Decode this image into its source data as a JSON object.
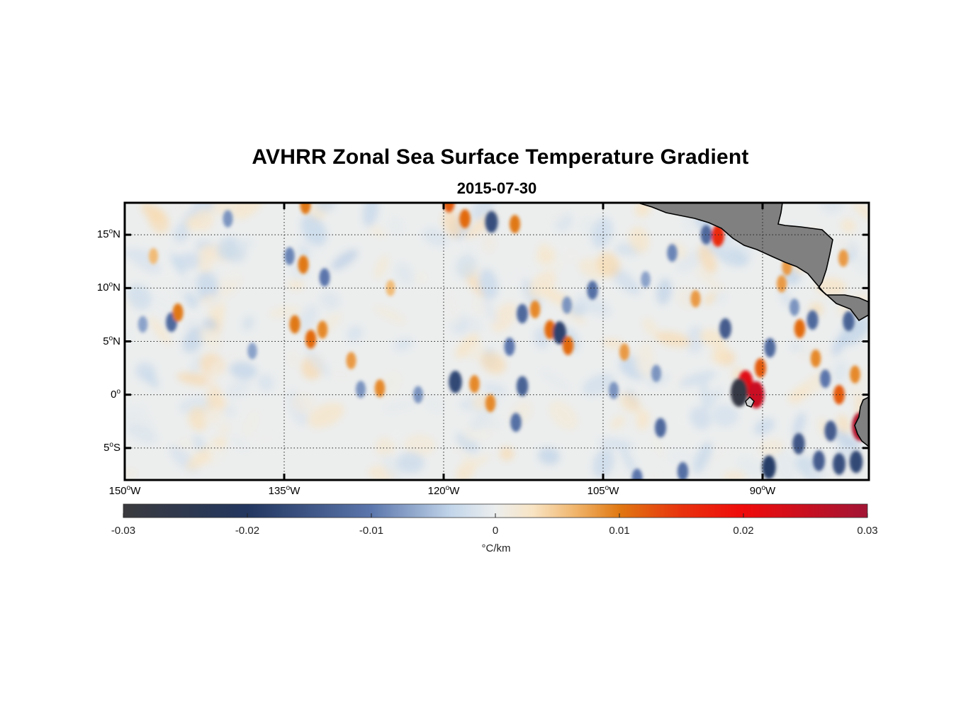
{
  "title": "AVHRR Zonal Sea Surface Temperature Gradient",
  "subtitle": "2015-07-30",
  "map": {
    "lon_range": [
      -150,
      -80
    ],
    "lat_range": [
      -8,
      18
    ],
    "lat_ticks": [
      {
        "value": 15,
        "num": "15",
        "deg": "o",
        "hemi": "N"
      },
      {
        "value": 10,
        "num": "10",
        "deg": "o",
        "hemi": "N"
      },
      {
        "value": 5,
        "num": "5",
        "deg": "o",
        "hemi": "N"
      },
      {
        "value": 0,
        "num": "0",
        "deg": "o",
        "hemi": ""
      },
      {
        "value": -5,
        "num": "5",
        "deg": "o",
        "hemi": "S"
      }
    ],
    "lon_ticks": [
      {
        "value": -150,
        "num": "150",
        "deg": "o",
        "hemi": "W"
      },
      {
        "value": -135,
        "num": "135",
        "deg": "o",
        "hemi": "W"
      },
      {
        "value": -120,
        "num": "120",
        "deg": "o",
        "hemi": "W"
      },
      {
        "value": -105,
        "num": "105",
        "deg": "o",
        "hemi": "W"
      },
      {
        "value": -90,
        "num": "90",
        "deg": "o",
        "hemi": "W"
      }
    ],
    "land_color": "#808080",
    "ocean_color": "#eceeee",
    "anomalies": [
      {
        "lon": -140.3,
        "lat": 16.5,
        "v": -0.008
      },
      {
        "lon": -133.2,
        "lat": 12.2,
        "v": 0.01
      },
      {
        "lon": -131.2,
        "lat": 11.0,
        "v": -0.01
      },
      {
        "lon": -134.5,
        "lat": 13.0,
        "v": -0.009
      },
      {
        "lon": -134.0,
        "lat": 6.6,
        "v": 0.01
      },
      {
        "lon": -132.5,
        "lat": 5.2,
        "v": 0.011
      },
      {
        "lon": -131.4,
        "lat": 6.1,
        "v": 0.009
      },
      {
        "lon": -145.6,
        "lat": 6.8,
        "v": -0.012
      },
      {
        "lon": -145.0,
        "lat": 7.7,
        "v": 0.01
      },
      {
        "lon": -148.3,
        "lat": 6.6,
        "v": -0.007
      },
      {
        "lon": -133.0,
        "lat": 17.8,
        "v": 0.01
      },
      {
        "lon": -118.0,
        "lat": 16.5,
        "v": 0.011
      },
      {
        "lon": -115.5,
        "lat": 16.2,
        "v": -0.016
      },
      {
        "lon": -113.3,
        "lat": 16.0,
        "v": 0.01
      },
      {
        "lon": -119.5,
        "lat": 18.0,
        "v": 0.012
      },
      {
        "lon": -111.4,
        "lat": 8.0,
        "v": 0.009
      },
      {
        "lon": -112.6,
        "lat": 7.6,
        "v": -0.012
      },
      {
        "lon": -110.0,
        "lat": 6.1,
        "v": 0.011
      },
      {
        "lon": -109.1,
        "lat": 5.8,
        "v": -0.018
      },
      {
        "lon": -108.3,
        "lat": 4.6,
        "v": 0.011
      },
      {
        "lon": -108.4,
        "lat": 8.4,
        "v": -0.008
      },
      {
        "lon": -106.0,
        "lat": 9.8,
        "v": -0.011
      },
      {
        "lon": -113.8,
        "lat": 4.5,
        "v": -0.01
      },
      {
        "lon": -118.9,
        "lat": 1.2,
        "v": -0.017
      },
      {
        "lon": -117.1,
        "lat": 1.0,
        "v": 0.009
      },
      {
        "lon": -115.6,
        "lat": -0.8,
        "v": 0.009
      },
      {
        "lon": -112.6,
        "lat": 0.8,
        "v": -0.013
      },
      {
        "lon": -113.2,
        "lat": -2.6,
        "v": -0.011
      },
      {
        "lon": -126.0,
        "lat": 0.6,
        "v": 0.009
      },
      {
        "lon": -127.8,
        "lat": 0.5,
        "v": -0.008
      },
      {
        "lon": -122.4,
        "lat": 0.0,
        "v": -0.008
      },
      {
        "lon": -94.2,
        "lat": 14.9,
        "v": 0.016
      },
      {
        "lon": -95.3,
        "lat": 15.0,
        "v": -0.012
      },
      {
        "lon": -98.5,
        "lat": 13.3,
        "v": -0.009
      },
      {
        "lon": -91.6,
        "lat": 1.1,
        "v": 0.022
      },
      {
        "lon": -90.6,
        "lat": 0.0,
        "v": 0.025
      },
      {
        "lon": -92.2,
        "lat": 0.2,
        "v": -0.028
      },
      {
        "lon": -90.2,
        "lat": 2.5,
        "v": 0.012
      },
      {
        "lon": -89.3,
        "lat": 4.4,
        "v": -0.012
      },
      {
        "lon": -93.5,
        "lat": 6.2,
        "v": -0.014
      },
      {
        "lon": -86.5,
        "lat": 6.2,
        "v": 0.011
      },
      {
        "lon": -85.3,
        "lat": 7.0,
        "v": -0.012
      },
      {
        "lon": -81.9,
        "lat": 6.9,
        "v": -0.013
      },
      {
        "lon": -82.8,
        "lat": 0.0,
        "v": 0.012
      },
      {
        "lon": -83.6,
        "lat": -3.4,
        "v": -0.014
      },
      {
        "lon": -80.8,
        "lat": -3.0,
        "v": 0.028
      },
      {
        "lon": -81.2,
        "lat": -6.3,
        "v": -0.017
      },
      {
        "lon": -82.8,
        "lat": -6.5,
        "v": -0.016
      },
      {
        "lon": -84.7,
        "lat": -6.2,
        "v": -0.014
      },
      {
        "lon": -86.6,
        "lat": -4.6,
        "v": -0.015
      },
      {
        "lon": -89.4,
        "lat": -6.8,
        "v": -0.019
      },
      {
        "lon": -99.6,
        "lat": -3.1,
        "v": -0.012
      },
      {
        "lon": -97.5,
        "lat": -7.2,
        "v": -0.011
      },
      {
        "lon": -101.8,
        "lat": -7.8,
        "v": -0.01
      },
      {
        "lon": -87.0,
        "lat": 8.2,
        "v": -0.008
      },
      {
        "lon": -87.7,
        "lat": 12.0,
        "v": 0.008
      },
      {
        "lon": -88.2,
        "lat": 10.4,
        "v": 0.008
      },
      {
        "lon": -84.1,
        "lat": 1.5,
        "v": -0.01
      },
      {
        "lon": -85.0,
        "lat": 3.4,
        "v": 0.009
      },
      {
        "lon": -103.0,
        "lat": 4.0,
        "v": 0.008
      },
      {
        "lon": -100.0,
        "lat": 2.0,
        "v": -0.008
      },
      {
        "lon": -96.3,
        "lat": 9.0,
        "v": 0.008
      },
      {
        "lon": -82.4,
        "lat": 12.8,
        "v": 0.008
      },
      {
        "lon": -81.3,
        "lat": 1.9,
        "v": 0.009
      },
      {
        "lon": -128.7,
        "lat": 3.2,
        "v": 0.008
      },
      {
        "lon": -138.0,
        "lat": 4.1,
        "v": -0.007
      },
      {
        "lon": -147.3,
        "lat": 13.0,
        "v": 0.006
      },
      {
        "lon": -125.0,
        "lat": 10.0,
        "v": 0.006
      },
      {
        "lon": -101.0,
        "lat": 10.8,
        "v": -0.007
      },
      {
        "lon": -104.0,
        "lat": 0.4,
        "v": -0.008
      }
    ]
  },
  "colorbar": {
    "min": -0.03,
    "max": 0.03,
    "stops": [
      {
        "v": -0.03,
        "c": "#3a3a3e"
      },
      {
        "v": -0.02,
        "c": "#22365f"
      },
      {
        "v": -0.01,
        "c": "#5b76ac"
      },
      {
        "v": -0.0035,
        "c": "#c3d6ea"
      },
      {
        "v": 0.0,
        "c": "#eceeee"
      },
      {
        "v": 0.003,
        "c": "#f8e4c4"
      },
      {
        "v": 0.0065,
        "c": "#f0b46a"
      },
      {
        "v": 0.01,
        "c": "#e07812"
      },
      {
        "v": 0.015,
        "c": "#e8320e"
      },
      {
        "v": 0.02,
        "c": "#ef0b0b"
      },
      {
        "v": 0.03,
        "c": "#a21535"
      }
    ],
    "ticks": [
      {
        "value": -0.03,
        "label": "-0.03"
      },
      {
        "value": -0.02,
        "label": "-0.02"
      },
      {
        "value": -0.01,
        "label": "-0.01"
      },
      {
        "value": 0,
        "label": "0"
      },
      {
        "value": 0.01,
        "label": "0.01"
      },
      {
        "value": 0.02,
        "label": "0.02"
      },
      {
        "value": 0.03,
        "label": "0.03"
      }
    ],
    "units": "°C/km"
  }
}
